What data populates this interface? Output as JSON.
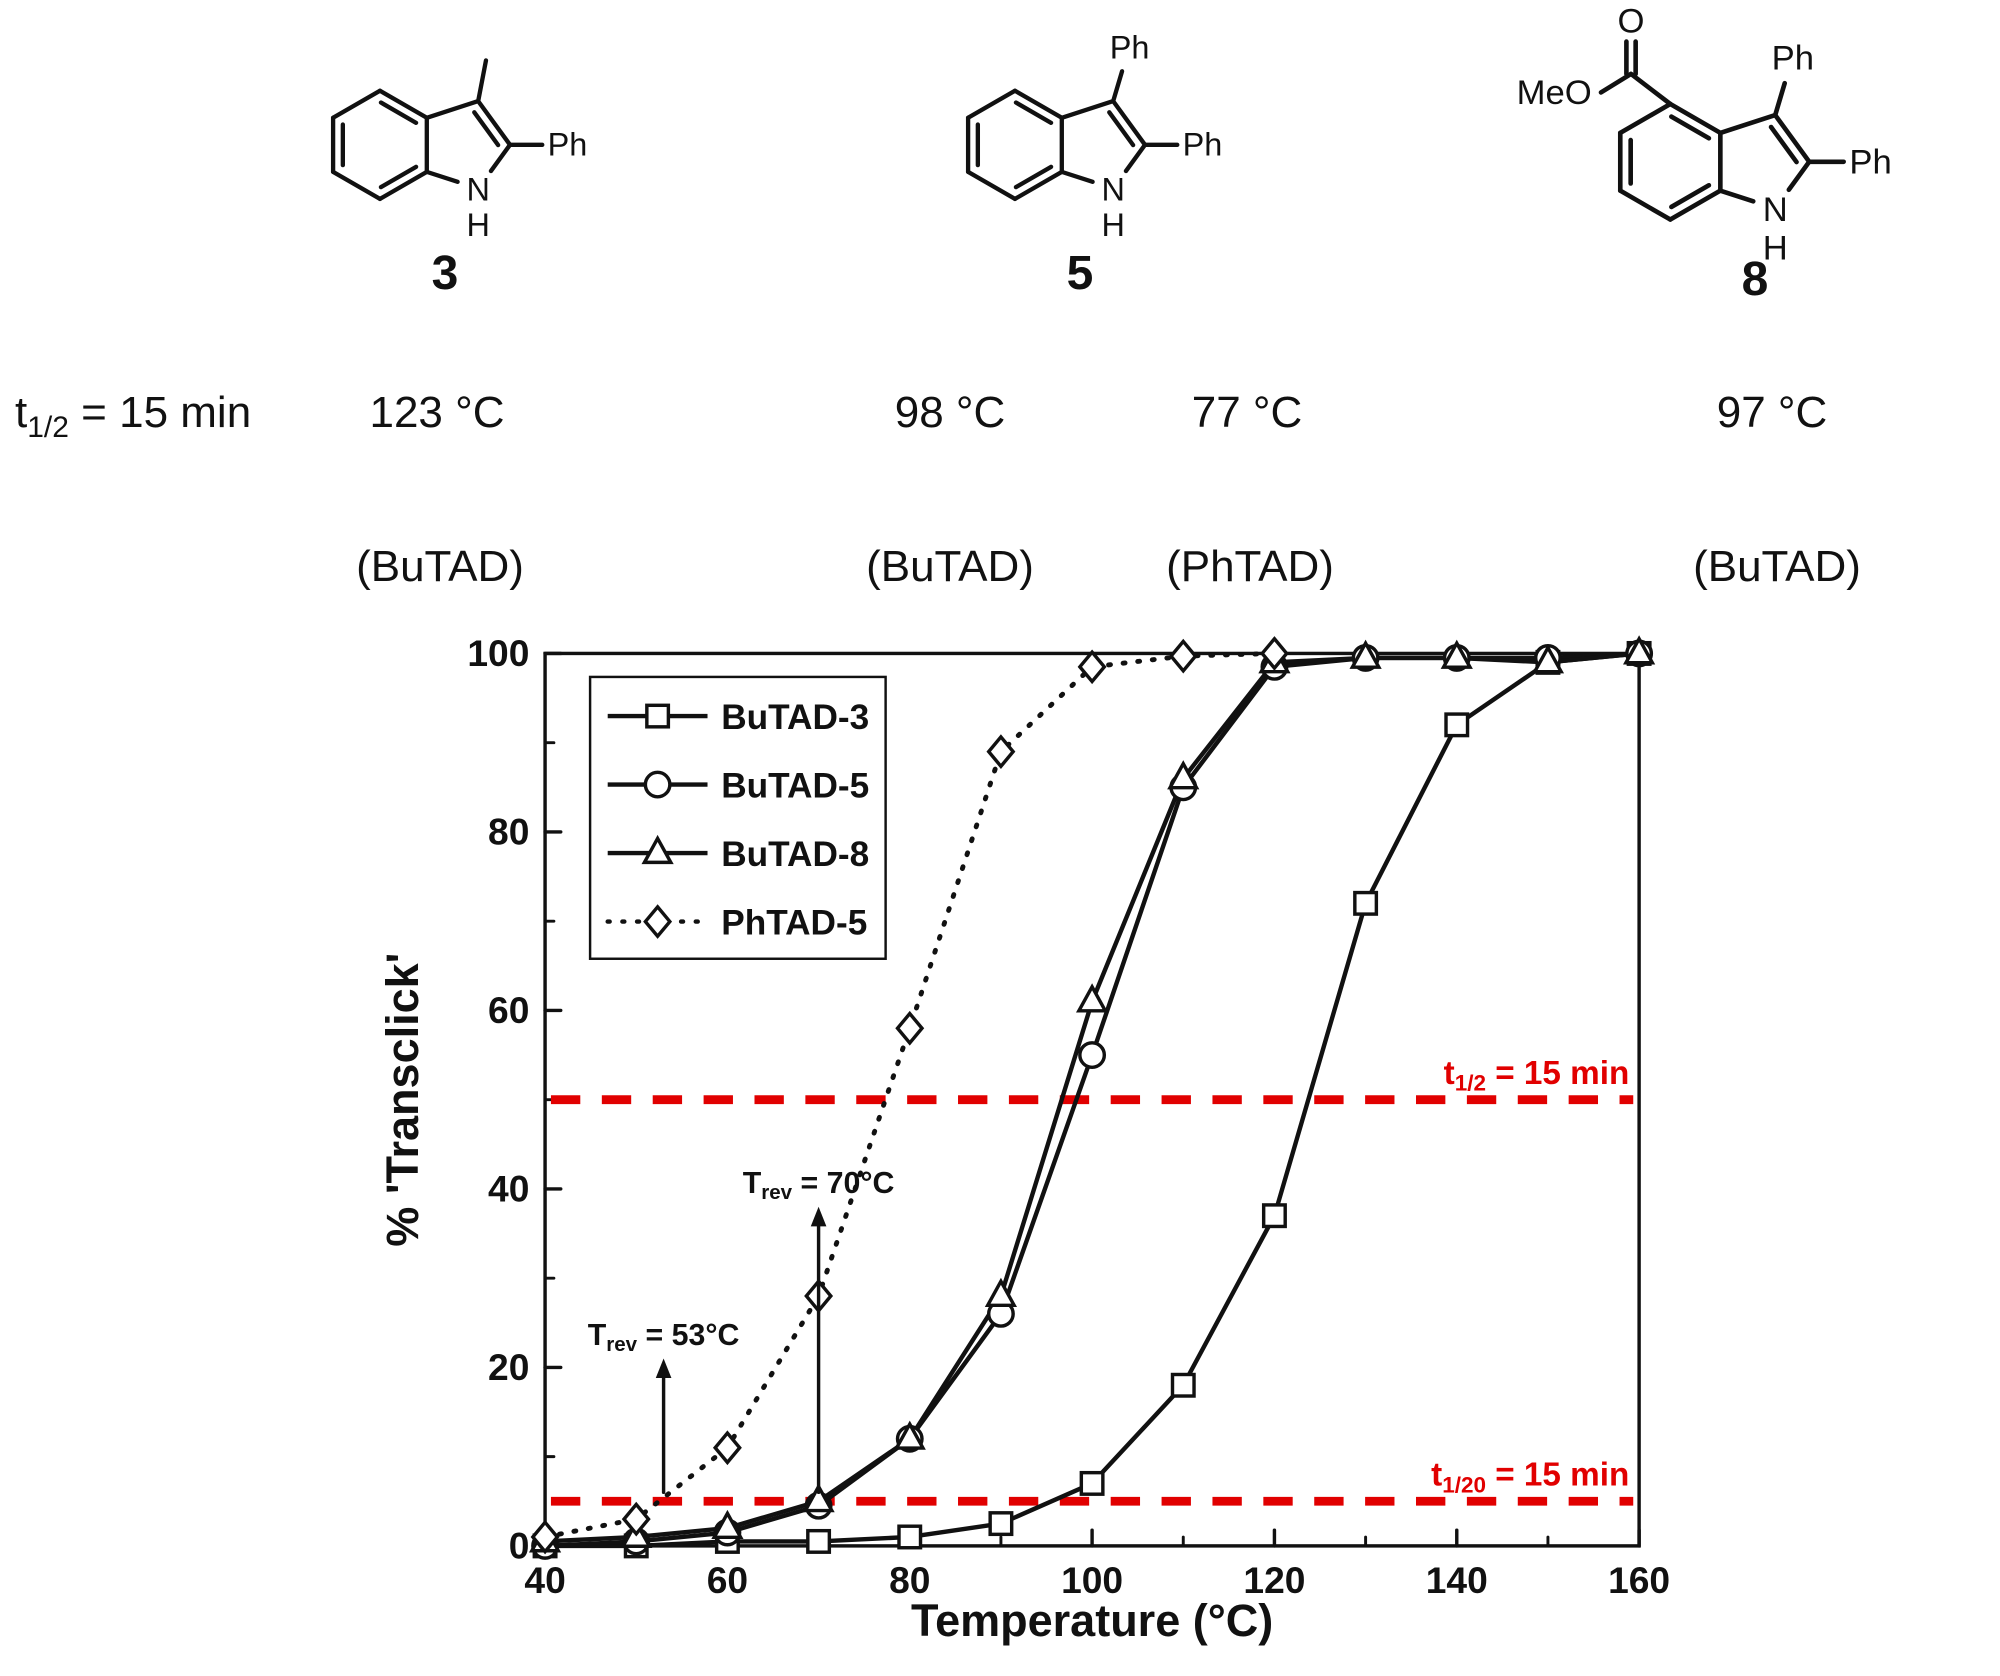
{
  "figure": {
    "structures": [
      {
        "id": "3",
        "c3_substituent": "methyl",
        "ester": false
      },
      {
        "id": "5",
        "c3_substituent": "phenyl",
        "ester": false
      },
      {
        "id": "8",
        "c3_substituent": "phenyl",
        "ester": true
      }
    ],
    "atom_labels": {
      "n": "N",
      "h": "H",
      "ph": "Ph",
      "meo": "MeO",
      "o": "O"
    },
    "half_life_row": {
      "label_pre": "t",
      "label_sub": "1/2",
      "label_post": " = 15 min",
      "temps": [
        "123 °C",
        "98 °C",
        "77 °C",
        "97 °C"
      ]
    },
    "tad_row": [
      "(BuTAD)",
      "(BuTAD)",
      "(PhTAD)",
      "(BuTAD)"
    ]
  },
  "chart_data": {
    "type": "line",
    "title": "",
    "xlabel": "Temperature (°C)",
    "ylabel": "% 'Transclick'",
    "xlim": [
      40,
      160
    ],
    "ylim": [
      0,
      100
    ],
    "x_major_ticks": [
      40,
      60,
      80,
      100,
      120,
      140,
      160
    ],
    "x_minor_ticks": [
      50,
      70,
      90,
      110,
      130,
      150
    ],
    "y_major_ticks": [
      0,
      20,
      40,
      60,
      80,
      100
    ],
    "y_minor_ticks": [
      10,
      30,
      50,
      70,
      90
    ],
    "grid": false,
    "legend_position": "top-left",
    "series": [
      {
        "name": "BuTAD-3",
        "marker": "square",
        "line": "solid",
        "x": [
          40,
          50,
          60,
          70,
          80,
          90,
          100,
          110,
          120,
          130,
          140,
          150,
          160
        ],
        "y": [
          0,
          0,
          0.5,
          0.5,
          1,
          2.5,
          7,
          18,
          37,
          72,
          92,
          99,
          100
        ]
      },
      {
        "name": "BuTAD-5",
        "marker": "circle",
        "line": "solid",
        "x": [
          40,
          50,
          60,
          70,
          80,
          90,
          100,
          110,
          120,
          130,
          140,
          150,
          160
        ],
        "y": [
          0,
          0.5,
          1.5,
          4.5,
          12,
          26,
          55,
          85,
          98.5,
          99.5,
          99.5,
          99.5,
          100
        ]
      },
      {
        "name": "BuTAD-8",
        "marker": "triangle",
        "line": "solid",
        "x": [
          40,
          50,
          60,
          70,
          80,
          90,
          100,
          110,
          120,
          130,
          140,
          150,
          160
        ],
        "y": [
          0.5,
          1,
          2,
          5,
          12,
          28,
          61,
          86,
          99,
          99.5,
          99.5,
          99,
          100
        ]
      },
      {
        "name": "PhTAD-5",
        "marker": "diamond",
        "line": "dotted",
        "x": [
          40,
          50,
          60,
          70,
          80,
          90,
          100,
          110,
          120
        ],
        "y": [
          1,
          3,
          11,
          28,
          58,
          89,
          98.5,
          99.7,
          100
        ]
      }
    ],
    "reference_lines": [
      {
        "y": 50,
        "color": "#e10000",
        "label_pre": "t",
        "label_sub": "1/2",
        "label_post": " = 15 min"
      },
      {
        "y": 5,
        "color": "#e10000",
        "label_pre": "t",
        "label_sub": "1/20",
        "label_post": " = 15 min"
      }
    ],
    "annotations": [
      {
        "x": 53,
        "arrow_y_from": 6,
        "arrow_y_to": 21,
        "label_pre": "T",
        "label_sub": "rev",
        "label_post": " = 53°C"
      },
      {
        "x": 70,
        "arrow_y_from": 6,
        "arrow_y_to": 38,
        "label_pre": "T",
        "label_sub": "rev",
        "label_post": " = 70°C"
      }
    ]
  }
}
